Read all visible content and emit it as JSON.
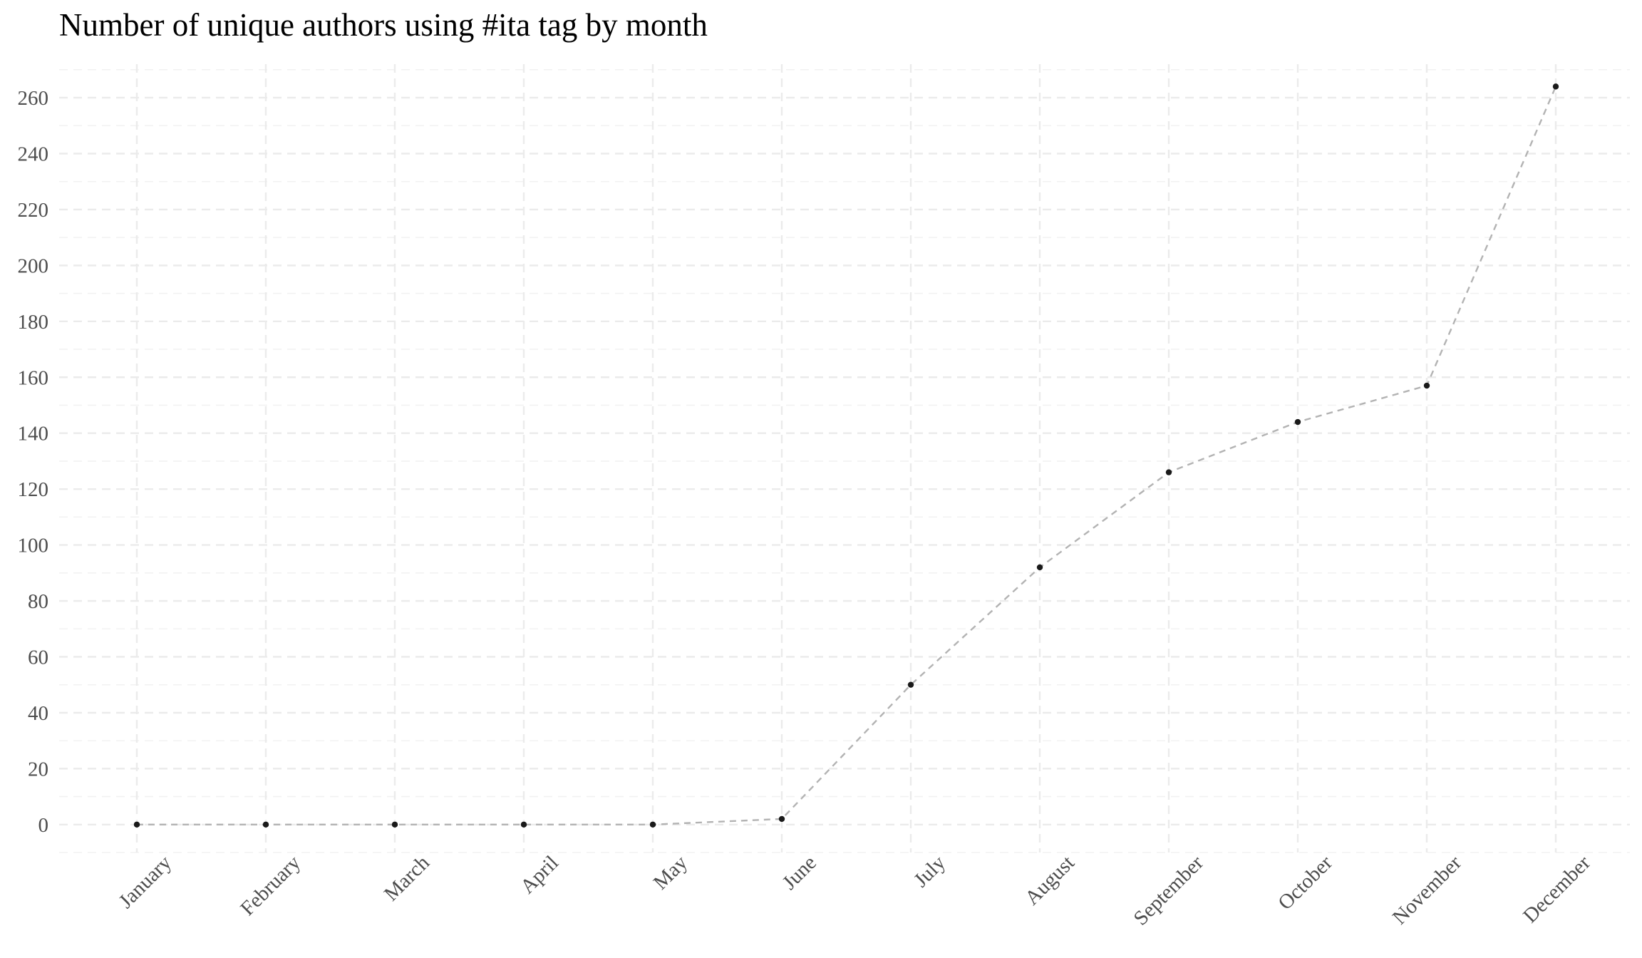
{
  "chart_data": {
    "type": "line",
    "title": "Number of unique authors using #ita tag by month",
    "xlabel": "",
    "ylabel": "",
    "categories": [
      "January",
      "February",
      "March",
      "April",
      "May",
      "June",
      "July",
      "August",
      "September",
      "October",
      "November",
      "December"
    ],
    "series": [
      {
        "values": [
          0,
          0,
          0,
          0,
          0,
          2,
          50,
          92,
          126,
          144,
          157,
          264
        ]
      }
    ],
    "ylim": [
      -10,
      272
    ],
    "yticks": [
      0,
      20,
      40,
      60,
      80,
      100,
      120,
      140,
      160,
      180,
      200,
      220,
      240,
      260
    ],
    "ytick_labels": [
      "0",
      "20",
      "40",
      "60",
      "80",
      "100",
      "120",
      "140",
      "160",
      "180",
      "200",
      "220",
      "240",
      "260"
    ],
    "grid": true,
    "line_style": "dashed",
    "line_color": "#b3b3b3",
    "point_color": "#1a1a1a",
    "grid_color": "#ebebeb"
  }
}
